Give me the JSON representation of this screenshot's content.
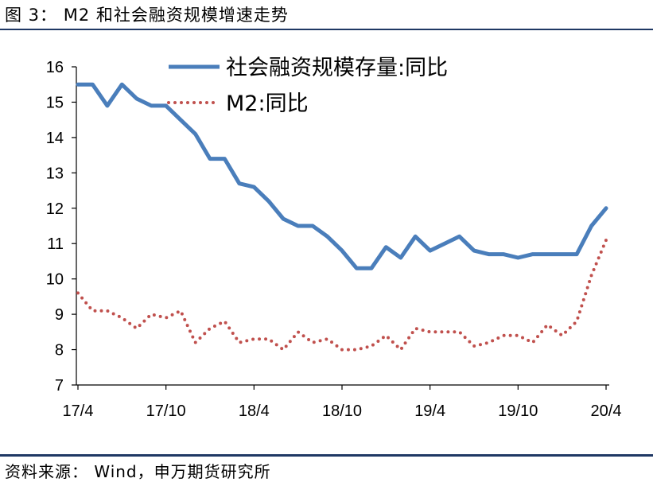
{
  "header": {
    "figure_title": "图 3： M2 和社会融资规模增速走势"
  },
  "footer": {
    "source": "资料来源： Wind，申万期货研究所"
  },
  "chart_data": {
    "type": "line",
    "title": "",
    "xlabel": "",
    "ylabel": "",
    "ylim": [
      7,
      16
    ],
    "yticks": [
      7,
      8,
      9,
      10,
      11,
      12,
      13,
      14,
      15,
      16
    ],
    "xtick_labels": [
      "17/4",
      "17/10",
      "18/4",
      "18/10",
      "19/4",
      "19/10",
      "20/4"
    ],
    "x": [
      "2017-04",
      "2017-05",
      "2017-06",
      "2017-07",
      "2017-08",
      "2017-09",
      "2017-10",
      "2017-11",
      "2017-12",
      "2018-01",
      "2018-02",
      "2018-03",
      "2018-04",
      "2018-05",
      "2018-06",
      "2018-07",
      "2018-08",
      "2018-09",
      "2018-10",
      "2018-11",
      "2018-12",
      "2019-01",
      "2019-02",
      "2019-03",
      "2019-04",
      "2019-05",
      "2019-06",
      "2019-07",
      "2019-08",
      "2019-09",
      "2019-10",
      "2019-11",
      "2019-12",
      "2020-01",
      "2020-02",
      "2020-03",
      "2020-04"
    ],
    "grid": false,
    "legend_position": "top-center",
    "series": [
      {
        "name": "社会融资规模存量:同比",
        "color": "#4a7ebb",
        "style": "solid",
        "values": [
          15.5,
          15.5,
          14.9,
          15.5,
          15.1,
          14.9,
          14.9,
          14.5,
          14.1,
          13.4,
          13.4,
          12.7,
          12.6,
          12.2,
          11.7,
          11.5,
          11.5,
          11.2,
          10.8,
          10.3,
          10.3,
          10.9,
          10.6,
          11.2,
          10.8,
          11.0,
          11.2,
          10.8,
          10.7,
          10.7,
          10.6,
          10.7,
          10.7,
          10.7,
          10.7,
          11.5,
          12.0
        ]
      },
      {
        "name": "M2:同比",
        "color": "#c0504d",
        "style": "dotted",
        "values": [
          9.6,
          9.1,
          9.1,
          8.9,
          8.6,
          9.0,
          8.9,
          9.1,
          8.2,
          8.6,
          8.8,
          8.2,
          8.3,
          8.3,
          8.0,
          8.5,
          8.2,
          8.3,
          8.0,
          8.0,
          8.1,
          8.4,
          8.0,
          8.6,
          8.5,
          8.5,
          8.5,
          8.1,
          8.2,
          8.4,
          8.4,
          8.2,
          8.7,
          8.4,
          8.8,
          10.1,
          11.1
        ]
      }
    ]
  }
}
